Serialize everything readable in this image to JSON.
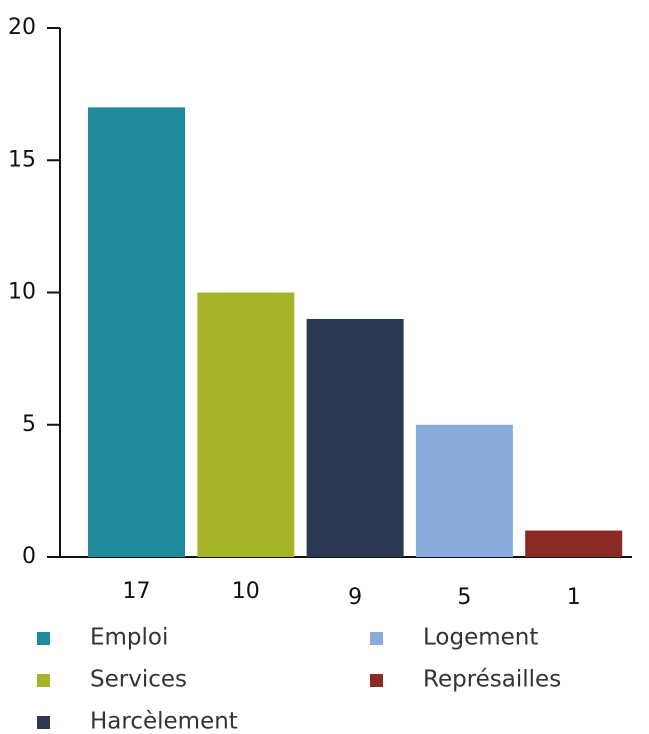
{
  "chart_data": {
    "type": "bar",
    "categories": [
      "Emploi",
      "Services",
      "Harcèlement",
      "Logement",
      "Représailles"
    ],
    "values": [
      17,
      10,
      9,
      5,
      1
    ],
    "colors": [
      "#1f8a9c",
      "#a7b42a",
      "#2b3a52",
      "#87abdb",
      "#8b2a22"
    ],
    "ylim": [
      0,
      20
    ],
    "yticks": [
      0,
      5,
      10,
      15,
      20
    ],
    "grid": false,
    "legend": "bottom"
  }
}
